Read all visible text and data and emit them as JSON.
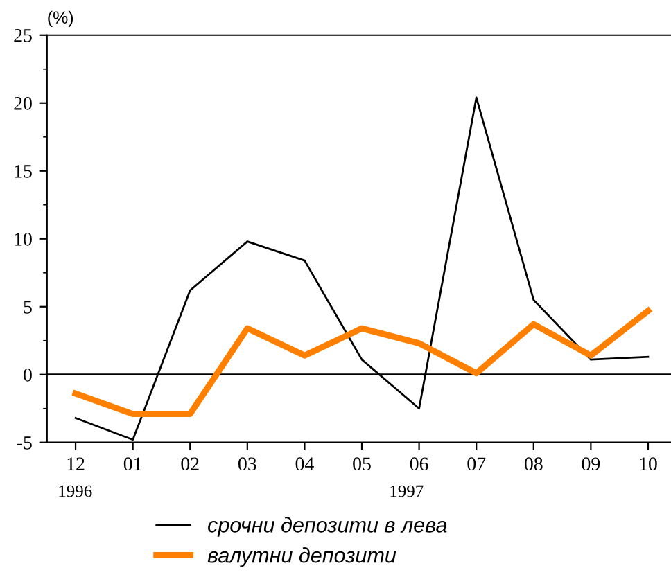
{
  "chart_data": {
    "type": "line",
    "ylabel": "(%)",
    "categories": [
      "12",
      "01",
      "02",
      "03",
      "04",
      "05",
      "06",
      "07",
      "08",
      "09",
      "10"
    ],
    "series": [
      {
        "name": "срочни депозити в лева",
        "color": "#000000",
        "values": [
          -3.2,
          -4.8,
          6.2,
          9.8,
          8.4,
          1.1,
          -2.5,
          20.4,
          5.5,
          1.1,
          1.3
        ]
      },
      {
        "name": "валутни депозити",
        "color": "#ff8000",
        "values": [
          -1.4,
          -2.9,
          -2.9,
          3.4,
          1.4,
          3.4,
          2.3,
          0.1,
          3.7,
          1.4,
          4.7
        ]
      }
    ],
    "ylim": [
      -5,
      25
    ],
    "yticks": [
      -5,
      0,
      5,
      10,
      15,
      20,
      25
    ],
    "ref_lines": [
      {
        "axis": "y",
        "value": 0,
        "color": "#000000"
      }
    ],
    "annotations": [
      "1996",
      "1997"
    ],
    "grid": false,
    "legend": "bottom",
    "marker": "none",
    "line_style": "solid"
  }
}
